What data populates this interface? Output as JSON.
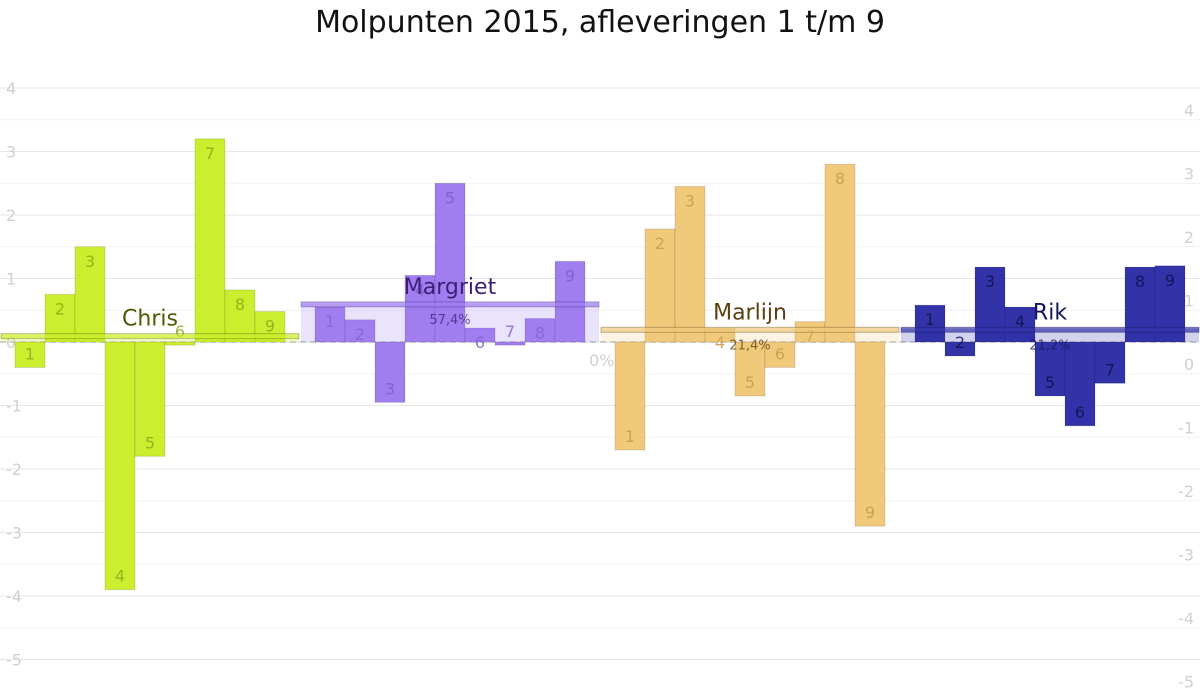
{
  "chart_data": {
    "type": "bar",
    "title": "Molpunten 2015, afleveringen 1 t/m 9",
    "ylim": [
      -5,
      4
    ],
    "yticks_left": [
      "4",
      "3",
      "2",
      "1",
      "0",
      "-1",
      "-2",
      "-3",
      "-4",
      "-5"
    ],
    "yticks_right": [
      "4",
      "3",
      "2",
      "1",
      "0",
      "-1",
      "-2",
      "-3",
      "-4",
      "-5"
    ],
    "grid": true,
    "zero_label": "0%",
    "episodes": [
      "1",
      "2",
      "3",
      "4",
      "5",
      "6",
      "7",
      "8",
      "9"
    ],
    "series": [
      {
        "name": "Chris",
        "color": "#cbee2e",
        "text_color": "#4a5a00",
        "episode_label_color": "#8ea81a",
        "values": [
          -0.4,
          0.75,
          1.5,
          -3.9,
          -1.8,
          -0.05,
          3.2,
          0.82,
          0.48
        ],
        "avg": 0.1,
        "pct": ""
      },
      {
        "name": "Margriet",
        "color": "#a07ef0",
        "text_color": "#3c1f78",
        "episode_label_color": "#7a5ec8",
        "values": [
          0.55,
          0.35,
          -0.95,
          1.05,
          2.5,
          0.22,
          -0.05,
          0.37,
          1.27
        ],
        "avg": 0.6,
        "pct": "57,4%"
      },
      {
        "name": "Marlijn",
        "color": "#f0c97a",
        "text_color": "#5a4010",
        "episode_label_color": "#c79a45",
        "values": [
          -1.7,
          1.78,
          2.45,
          0.22,
          -0.85,
          -0.4,
          0.32,
          2.8,
          -2.9
        ],
        "avg": 0.2,
        "pct": "21,4%"
      },
      {
        "name": "Rik",
        "color": "#3233a8",
        "text_color": "#14155a",
        "episode_label_color": "#10114a",
        "values": [
          0.58,
          -0.22,
          1.18,
          0.55,
          -0.85,
          -1.32,
          -0.65,
          1.18,
          1.2
        ],
        "avg": 0.2,
        "pct": "21,2%"
      }
    ]
  }
}
